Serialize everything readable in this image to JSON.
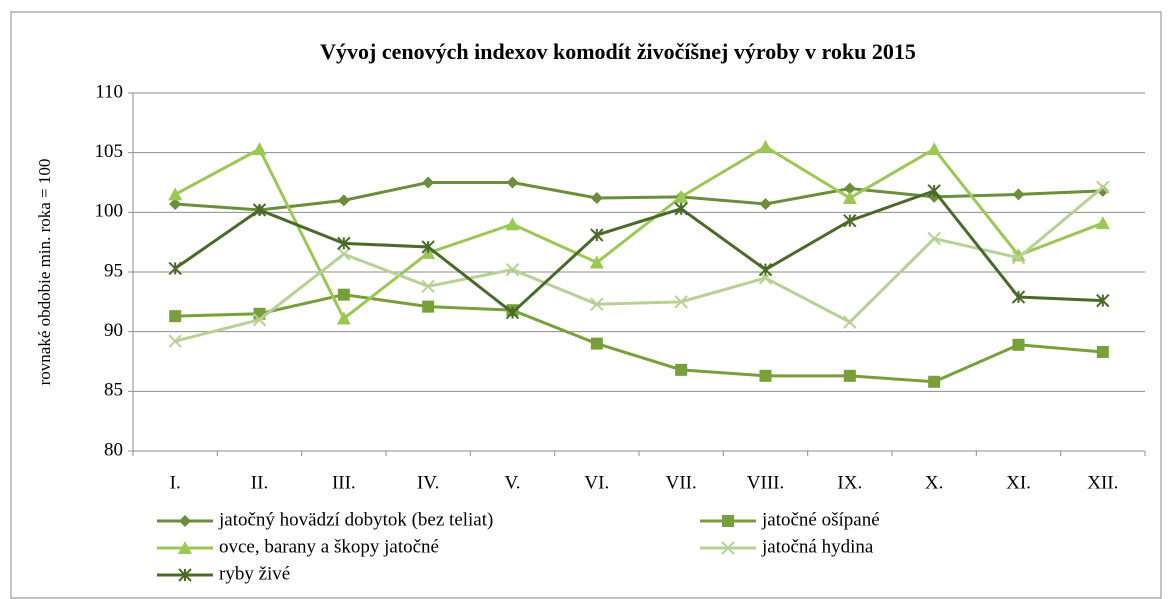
{
  "chart_data": {
    "type": "line",
    "title": "Vývoj cenových indexov komodít živočíšnej výroby v roku 2015",
    "y_label": "rovnaké obdobie min. roka = 100",
    "categories": [
      "I.",
      "II.",
      "III.",
      "IV.",
      "V.",
      "VI.",
      "VII.",
      "VIII.",
      "IX.",
      "X.",
      "XI.",
      "XII."
    ],
    "ylim": [
      80,
      110
    ],
    "yticks": [
      80,
      85,
      90,
      95,
      100,
      105,
      110
    ],
    "grid": true,
    "legend": "bottom",
    "series": [
      {
        "name": "jatočný hovädzí dobytok (bez teliat)",
        "color": "#6b8e3a",
        "marker": "diamond",
        "values": [
          100.7,
          100.2,
          101.0,
          102.5,
          102.5,
          101.2,
          101.3,
          100.7,
          102.0,
          101.3,
          101.5,
          101.8
        ]
      },
      {
        "name": "jatočné ošípané",
        "color": "#77a03a",
        "marker": "square",
        "values": [
          91.3,
          91.5,
          93.1,
          92.1,
          91.8,
          89.0,
          86.8,
          86.3,
          86.3,
          85.8,
          88.9,
          88.3
        ]
      },
      {
        "name": "ovce, barany a škopy jatočné",
        "color": "#9bc755",
        "marker": "triangle",
        "values": [
          101.5,
          105.3,
          91.1,
          96.6,
          99.0,
          95.8,
          101.3,
          105.5,
          101.2,
          105.3,
          96.4,
          99.1
        ]
      },
      {
        "name": "jatočná hydina",
        "color": "#b7d194",
        "marker": "x",
        "values": [
          89.2,
          91.0,
          96.5,
          93.8,
          95.2,
          92.3,
          92.5,
          94.5,
          90.8,
          97.8,
          96.2,
          102.1
        ]
      },
      {
        "name": "ryby živé",
        "color": "#4a6a2a",
        "marker": "star",
        "values": [
          95.3,
          100.2,
          97.4,
          97.1,
          91.6,
          98.1,
          100.3,
          95.2,
          99.3,
          101.8,
          92.9,
          92.6
        ]
      }
    ]
  }
}
